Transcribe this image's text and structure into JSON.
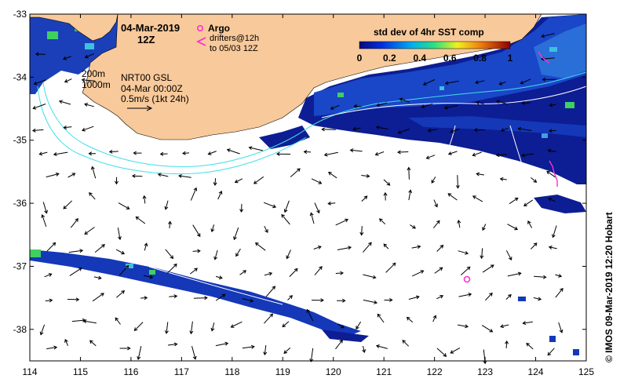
{
  "header": {
    "date": "04-Mar-2019",
    "time": "12Z"
  },
  "legend": {
    "argo_label": "Argo",
    "drifters_line1": "drifters@12h",
    "drifters_line2": "to 05/03 12Z",
    "colorbar_title": "std dev of 4hr SST comp",
    "colorbar_ticks": [
      "0",
      "0.2",
      "0.4",
      "0.6",
      "0.8",
      "1"
    ],
    "colorbar_values": [
      0,
      0.2,
      0.4,
      0.6,
      0.8,
      1
    ]
  },
  "isobaths": {
    "label_200": "200m",
    "label_1000": "1000m"
  },
  "current_info": {
    "line1": "NRT00 GSL",
    "line2": "04-Mar 00:00Z",
    "line3": "0.5m/s (1kt 24h)"
  },
  "axes": {
    "x_ticks": [
      "114",
      "115",
      "116",
      "117",
      "118",
      "119",
      "120",
      "121",
      "122",
      "123",
      "124",
      "125"
    ],
    "x_values": [
      114,
      115,
      116,
      117,
      118,
      119,
      120,
      121,
      122,
      123,
      124,
      125
    ],
    "y_ticks": [
      "-33",
      "-34",
      "-35",
      "-36",
      "-37",
      "-38"
    ],
    "y_values": [
      -33,
      -34,
      -35,
      -36,
      -37,
      -38
    ],
    "lon_range": [
      114,
      125
    ],
    "lat_range": [
      -38.5,
      -33
    ]
  },
  "credit": "© IMOS 09-Mar-2019 12:20 Hobart",
  "colors": {
    "land": "#f8c99a",
    "sst_dark": "#0a1a8f",
    "sst_mid": "#1e4fd0",
    "sst_cyan": "#3fc0e0",
    "sst_green": "#3fd060",
    "isobath": "#40e0e8",
    "argo": "#ff2fd0",
    "drifter": "#ff2fd0"
  }
}
